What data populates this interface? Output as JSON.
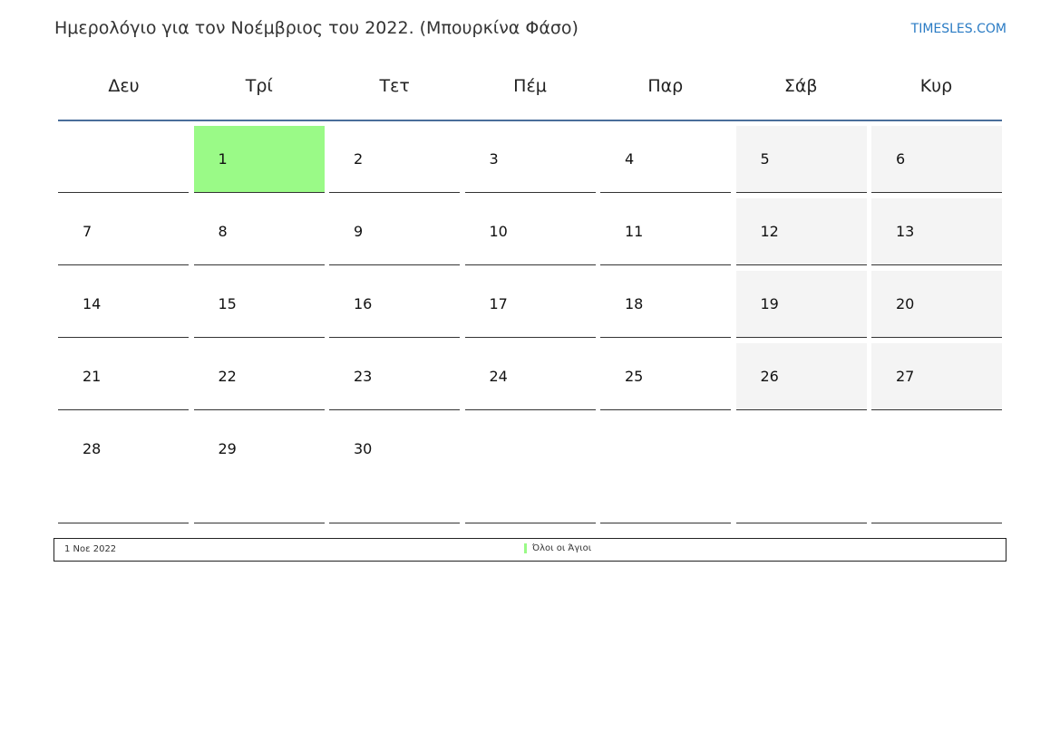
{
  "title": "Ημερολόγιο για τον Νοέμβριος του 2022. (Μπουρκίνα Φάσο)",
  "brand": "TIMESLES.COM",
  "colors": {
    "holiday": "#9afa87",
    "weekend": "#f4f4f4",
    "header_line": "#4a6e9a",
    "brand": "#2a7bc4"
  },
  "weekdays": [
    "Δευ",
    "Τρί",
    "Τετ",
    "Πέμ",
    "Παρ",
    "Σάβ",
    "Κυρ"
  ],
  "weeks": [
    [
      "",
      "1",
      "2",
      "3",
      "4",
      "5",
      "6"
    ],
    [
      "7",
      "8",
      "9",
      "10",
      "11",
      "12",
      "13"
    ],
    [
      "14",
      "15",
      "16",
      "17",
      "18",
      "19",
      "20"
    ],
    [
      "21",
      "22",
      "23",
      "24",
      "25",
      "26",
      "27"
    ],
    [
      "28",
      "29",
      "30",
      "",
      "",
      "",
      ""
    ]
  ],
  "holidays": [
    {
      "date": "1 Νοε 2022",
      "day": "1",
      "name": "Όλοι οι Άγιοι"
    }
  ]
}
